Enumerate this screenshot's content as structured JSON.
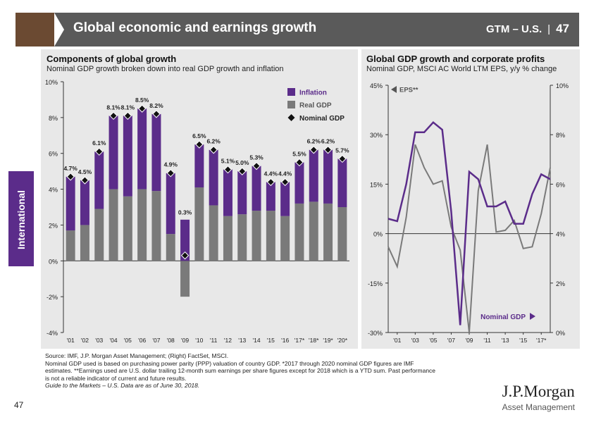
{
  "header": {
    "title": "Global economic and earnings growth",
    "gtm": "GTM – U.S.",
    "sep": "|",
    "page": "47"
  },
  "side_tab": "International",
  "left_chart": {
    "title": "Components of global growth",
    "subtitle": "Nominal GDP growth broken down into real GDP growth and inflation"
  },
  "right_chart": {
    "title": "Global GDP growth and corporate profits",
    "subtitle": "Nominal GDP, MSCI AC World LTM EPS, y/y % change"
  },
  "chart_data": [
    {
      "type": "bar",
      "stacked": true,
      "title": "Components of global growth",
      "categories": [
        "'01",
        "'02",
        "'03",
        "'04",
        "'05",
        "'06",
        "'07",
        "'08",
        "'09",
        "'10",
        "'11",
        "'12",
        "'13",
        "'14",
        "'15",
        "'16",
        "'17*",
        "'18*",
        "'19*",
        "'20*"
      ],
      "series": [
        {
          "name": "Real GDP",
          "color": "#7a7a7a",
          "values": [
            1.7,
            2.0,
            2.9,
            4.0,
            3.6,
            4.0,
            3.9,
            1.5,
            -2.0,
            4.1,
            3.1,
            2.5,
            2.6,
            2.8,
            2.8,
            2.5,
            3.2,
            3.3,
            3.2,
            3.0
          ]
        },
        {
          "name": "Inflation",
          "color": "#5b2c8a",
          "values": [
            3.0,
            2.5,
            3.2,
            4.1,
            4.5,
            4.5,
            4.3,
            3.4,
            2.3,
            2.4,
            3.1,
            2.6,
            2.4,
            2.5,
            1.6,
            1.9,
            2.3,
            2.9,
            3.0,
            2.7
          ]
        }
      ],
      "nominal_gdp": {
        "name": "Nominal GDP",
        "values": [
          4.7,
          4.5,
          6.1,
          8.1,
          8.1,
          8.5,
          8.2,
          4.9,
          0.3,
          6.5,
          6.2,
          5.1,
          5.0,
          5.3,
          4.4,
          4.4,
          5.5,
          6.2,
          6.2,
          5.7
        ],
        "labels": [
          "4.7%",
          "4.5%",
          "6.1%",
          "8.1%",
          "8.1%",
          "8.5%",
          "8.2%",
          "4.9%",
          "0.3%",
          "6.5%",
          "6.2%",
          "5.1%",
          "5.0%",
          "5.3%",
          "4.4%",
          "4.4%",
          "5.5%",
          "6.2%",
          "6.2%",
          "5.7%"
        ]
      },
      "legend": [
        "Inflation",
        "Real GDP",
        "Nominal GDP"
      ],
      "ylim": [
        -4,
        10
      ],
      "yticks": [
        "-4%",
        "-2%",
        "0%",
        "2%",
        "4%",
        "6%",
        "8%",
        "10%"
      ]
    },
    {
      "type": "line",
      "title": "Global GDP growth and corporate profits",
      "xticks": [
        "'01",
        "'03",
        "'05",
        "'07",
        "'09",
        "'11",
        "'13",
        "'15",
        "'17*"
      ],
      "x": [
        2000,
        2001,
        2002,
        2003,
        2004,
        2005,
        2006,
        2007,
        2008,
        2009,
        2010,
        2011,
        2012,
        2013,
        2014,
        2015,
        2016,
        2017,
        2018
      ],
      "series": [
        {
          "name": "EPS**",
          "axis": "left",
          "color": "#7a7a7a",
          "values": [
            -4,
            -10,
            5,
            27,
            20,
            15,
            16,
            2,
            -5,
            -30,
            13,
            27,
            0.5,
            1,
            4,
            -4.5,
            -4,
            6,
            20
          ]
        },
        {
          "name": "Nominal GDP",
          "axis": "right",
          "color": "#5b2c8a",
          "values": [
            4.6,
            4.5,
            6.0,
            8.1,
            8.1,
            8.5,
            8.2,
            4.9,
            0.3,
            6.5,
            6.2,
            5.1,
            5.1,
            5.3,
            4.4,
            4.4,
            5.6,
            6.4,
            6.2
          ]
        }
      ],
      "ylim_left": [
        -30,
        45
      ],
      "yticks_left": [
        "-30%",
        "-15%",
        "0%",
        "15%",
        "30%",
        "45%"
      ],
      "ylim_right": [
        0,
        10
      ],
      "yticks_right": [
        "0%",
        "2%",
        "4%",
        "6%",
        "8%",
        "10%"
      ],
      "legend": [
        "EPS**",
        "Nominal GDP"
      ]
    }
  ],
  "footnote": {
    "line1": "Source: IMF, J.P. Morgan Asset Management; (Right) FactSet, MSCI.",
    "line2": "Nominal GDP used is based on purchasing power parity (PPP) valuation of country GDP. *2017 through 2020 nominal GDP figures are IMF",
    "line3": "estimates. **Earnings used are U.S. dollar trailing 12-month sum earnings per share figures except for 2018 which is a YTD sum. Past performance",
    "line4": "is not a reliable indicator of current and future results.",
    "line5": "Guide to the Markets – U.S. Data are as of June 30, 2018."
  },
  "page_number": "47",
  "logo": {
    "main": "J.P.Morgan",
    "sub": "Asset Management"
  }
}
